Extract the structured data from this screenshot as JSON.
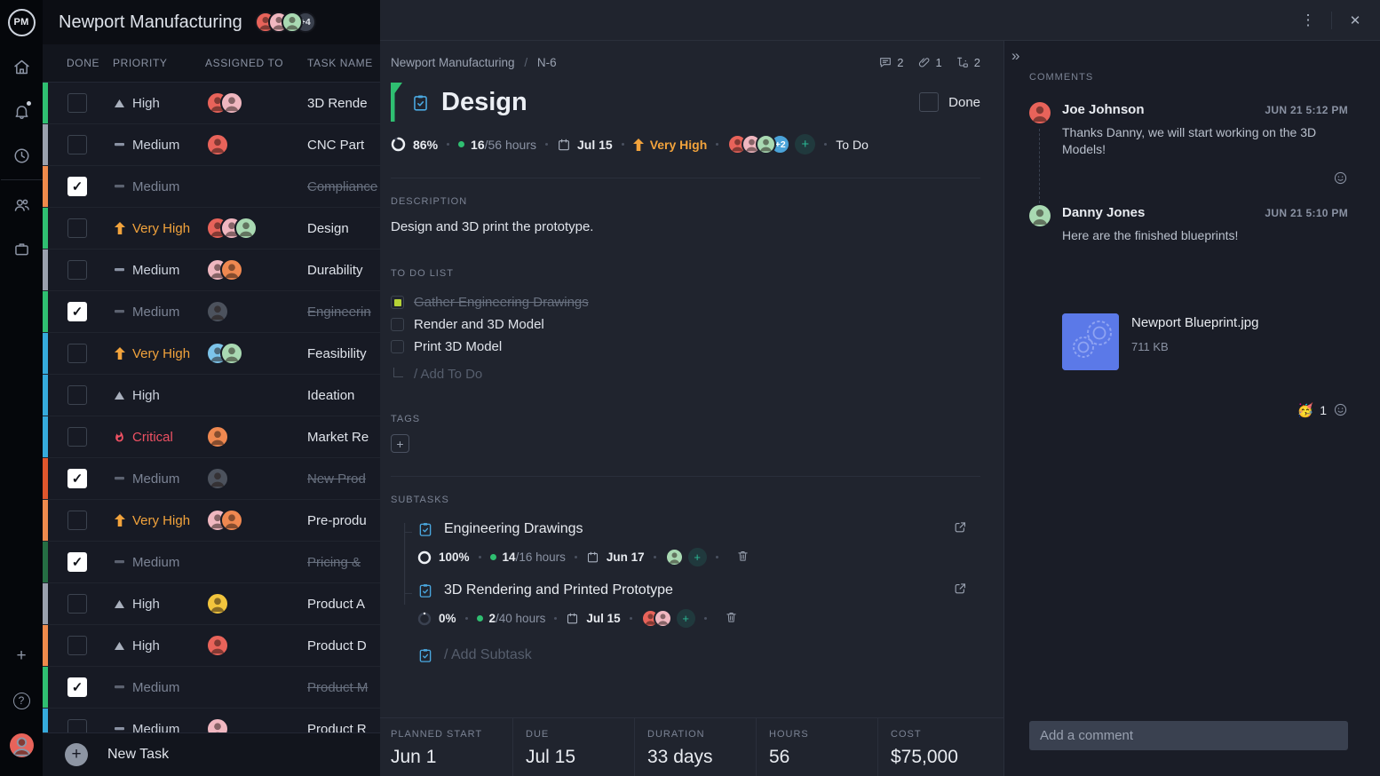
{
  "icons": {
    "kebab": "⋮",
    "close": "✕",
    "collapse": "»",
    "plus": "+",
    "help": "?",
    "check": "✓"
  },
  "colors": {
    "accent_green": "#2fbf71",
    "very_high_orange": "#f2a33c",
    "critical_red": "#ee5163",
    "link_blue": "#4aa8e0",
    "teal": "#2ab894",
    "badge_blue": "#4aa3d9",
    "attachment_blue": "#5b79e8",
    "todo_checked_lime": "#b5d336"
  },
  "topbar": {
    "logo_text": "PM",
    "title": "Newport Manufacturing",
    "avatars": [
      "coral",
      "pink",
      "mint"
    ],
    "avatar_overflow": "+4"
  },
  "sidebar": {
    "top_icons": [
      "home-icon",
      "bell-icon",
      "clock-icon"
    ],
    "group_icons": [
      "users-icon",
      "briefcase-icon"
    ],
    "bottom_icons": [
      "plus-icon",
      "help-icon",
      "user-avatar"
    ]
  },
  "table": {
    "headers": [
      "DONE",
      "PRIORITY",
      "ASSIGNED TO",
      "TASK NAME"
    ],
    "rows": [
      {
        "done": false,
        "priority": "High",
        "level": "high",
        "strip": "#2fbf71",
        "avatars": [
          "coral",
          "pink"
        ],
        "task": "3D Rende"
      },
      {
        "done": false,
        "priority": "Medium",
        "level": "medium",
        "strip": "#9aa0ad",
        "avatars": [
          "coral"
        ],
        "task": "CNC Part"
      },
      {
        "done": true,
        "priority": "Medium",
        "level": "medium",
        "strip": "#f08a4b",
        "avatars": [],
        "task": "Compliance"
      },
      {
        "done": false,
        "priority": "Very High",
        "level": "veryhigh",
        "strip": "#2fbf71",
        "avatars": [
          "coral",
          "pink",
          "mint"
        ],
        "task": "Design"
      },
      {
        "done": false,
        "priority": "Medium",
        "level": "medium",
        "strip": "#9aa0ad",
        "avatars": [
          "pink",
          "orange"
        ],
        "task": "Durability"
      },
      {
        "done": true,
        "priority": "Medium",
        "level": "medium",
        "strip": "#2fbf71",
        "avatars": [
          "gray"
        ],
        "task": "Engineerin"
      },
      {
        "done": false,
        "priority": "Very High",
        "level": "veryhigh",
        "strip": "#35aadc",
        "avatars": [
          "blue",
          "mint"
        ],
        "task": "Feasibility"
      },
      {
        "done": false,
        "priority": "High",
        "level": "high",
        "strip": "#35aadc",
        "avatars": [],
        "task": "Ideation"
      },
      {
        "done": false,
        "priority": "Critical",
        "level": "critical",
        "strip": "#35aadc",
        "avatars": [
          "orange"
        ],
        "task": "Market Re"
      },
      {
        "done": true,
        "priority": "Medium",
        "level": "medium",
        "strip": "#e0562c",
        "avatars": [
          "gray"
        ],
        "task": "New Prod"
      },
      {
        "done": false,
        "priority": "Very High",
        "level": "veryhigh",
        "strip": "#ef8a4d",
        "avatars": [
          "pink",
          "orange"
        ],
        "task": "Pre-produ"
      },
      {
        "done": true,
        "priority": "Medium",
        "level": "medium",
        "strip": "#256e43",
        "avatars": [],
        "task": "Pricing & "
      },
      {
        "done": false,
        "priority": "High",
        "level": "high",
        "strip": "#9aa0ad",
        "avatars": [
          "yellow"
        ],
        "task": "Product A"
      },
      {
        "done": false,
        "priority": "High",
        "level": "high",
        "strip": "#f08a4b",
        "avatars": [
          "coral"
        ],
        "task": "Product D"
      },
      {
        "done": true,
        "priority": "Medium",
        "level": "medium",
        "strip": "#2fbf71",
        "avatars": [],
        "task": "Product M"
      },
      {
        "done": false,
        "priority": "Medium",
        "level": "medium",
        "strip": "#35aadc",
        "avatars": [
          "pink"
        ],
        "task": "Product R"
      }
    ],
    "new_task_label": "New Task"
  },
  "modal": {
    "breadcrumb": {
      "project": "Newport Manufacturing",
      "separator": "/",
      "task_id": "N-6"
    },
    "counts": {
      "comments": "2",
      "attachments": "1",
      "subtasks": "2"
    },
    "title": "Design",
    "done_label": "Done",
    "meta": {
      "progress": "86%",
      "progress_value": 86,
      "hours_done": "16",
      "hours_rest": "/56 hours",
      "due": "Jul 15",
      "priority": "Very High",
      "avatars": [
        "coral",
        "pink",
        "mint"
      ],
      "avatar_overflow": "+2",
      "status": "To Do"
    },
    "description": {
      "heading": "DESCRIPTION",
      "text": "Design and 3D print the prototype."
    },
    "todo": {
      "heading": "TO DO LIST",
      "items": [
        {
          "label": "Gather Engineering Drawings",
          "checked": true
        },
        {
          "label": "Render and 3D Model",
          "checked": false
        },
        {
          "label": "Print 3D Model",
          "checked": false
        }
      ],
      "add_placeholder": "/ Add To Do"
    },
    "tags": {
      "heading": "TAGS"
    },
    "subtasks": {
      "heading": "SUBTASKS",
      "items": [
        {
          "title": "Engineering Drawings",
          "progress": "100%",
          "progress_value": 100,
          "hours_done": "14",
          "hours_rest": "/16 hours",
          "due": "Jun 17",
          "avatars": [
            "mint"
          ]
        },
        {
          "title": "3D Rendering and Printed Prototype",
          "progress": "0%",
          "progress_value": 0,
          "hours_done": "2",
          "hours_rest": "/40 hours",
          "due": "Jul 15",
          "avatars": [
            "coral",
            "pink"
          ]
        }
      ],
      "add_placeholder": "/ Add Subtask"
    },
    "stats": [
      {
        "label": "PLANNED START",
        "value": "Jun 1"
      },
      {
        "label": "DUE",
        "value": "Jul 15"
      },
      {
        "label": "DURATION",
        "value": "33 days"
      },
      {
        "label": "HOURS",
        "value": "56"
      },
      {
        "label": "COST",
        "value": "$75,000"
      }
    ]
  },
  "comments": {
    "heading": "COMMENTS",
    "items": [
      {
        "author": "Joe Johnson",
        "time": "JUN 21 5:12 PM",
        "text": "Thanks Danny, we will start working on the 3D Models!",
        "avatar": "coral",
        "add_reaction": true
      },
      {
        "author": "Danny Jones",
        "time": "JUN 21 5:10 PM",
        "text": "Here are the finished blueprints!",
        "avatar": "mint",
        "attachment": {
          "name": "Newport Blueprint.jpg",
          "size": "711 KB"
        },
        "reaction": {
          "emoji": "🥳",
          "count": "1"
        }
      }
    ],
    "input_placeholder": "Add a comment"
  }
}
